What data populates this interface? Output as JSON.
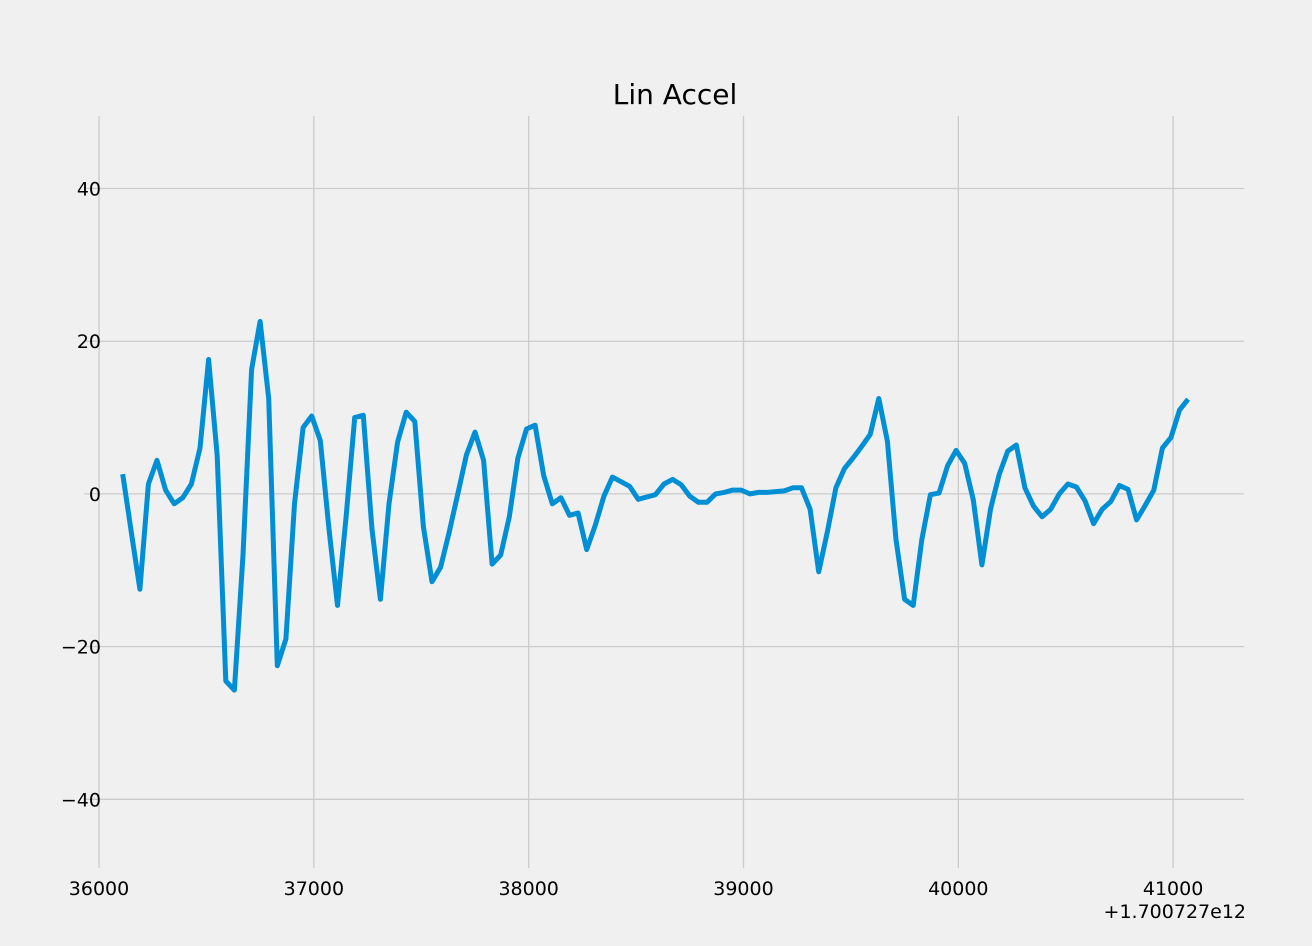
{
  "chart_data": {
    "type": "line",
    "title": "Lin Accel",
    "xlabel": "",
    "ylabel": "",
    "x_offset_label": "+1.700727e12",
    "xlim": [
      35930,
      41330
    ],
    "ylim": [
      -49,
      49.5
    ],
    "x_ticks": [
      36000,
      37000,
      38000,
      39000,
      40000,
      41000
    ],
    "x_tick_labels": [
      "36000",
      "37000",
      "38000",
      "39000",
      "40000",
      "41000"
    ],
    "y_ticks": [
      40,
      20,
      0,
      -20,
      -40
    ],
    "y_tick_labels": [
      "40",
      "20",
      "0",
      "−20",
      "−40"
    ],
    "grid": true,
    "legend": "none",
    "line_color": "#008fd5",
    "series": [
      {
        "x": [
          36110,
          36150,
          36190,
          36230,
          36270,
          36310,
          36350,
          36390,
          36430,
          36470,
          36510,
          36550,
          36590,
          36630,
          36670,
          36710,
          36750,
          36790,
          36830,
          36870,
          36910,
          36950,
          36990,
          37030,
          37070,
          37110,
          37150,
          37190,
          37230,
          37270,
          37310,
          37350,
          37390,
          37430,
          37470,
          37510,
          37550,
          37590,
          37630,
          37670,
          37710,
          37750,
          37790,
          37830,
          37870,
          37910,
          37950,
          37990,
          38030,
          38070,
          38110,
          38150,
          38190,
          38230,
          38270,
          38310,
          38350,
          38390,
          38430,
          38470,
          38510,
          38550,
          38590,
          38630,
          38670,
          38710,
          38750,
          38790,
          38830,
          38870,
          38910,
          38950,
          38990,
          39030,
          39070,
          39110,
          39150,
          39190,
          39230,
          39270,
          39310,
          39350,
          39390,
          39430,
          39470,
          39510,
          39550,
          39590,
          39630,
          39670,
          39710,
          39750,
          39790,
          39830,
          39870,
          39910,
          39950,
          39990,
          40030,
          40070,
          40110,
          40150,
          40190,
          40230,
          40270,
          40310,
          40350,
          40390,
          40430,
          40470,
          40510,
          40550,
          40590,
          40630,
          40670,
          40710,
          40750,
          40790,
          40830,
          40870,
          40910,
          40950,
          40990,
          41030,
          41070
        ],
        "y": [
          2.6,
          -5,
          -12.5,
          1.3,
          4.4,
          0.5,
          -1.3,
          -0.5,
          1.3,
          6,
          17.6,
          5,
          -24.5,
          -25.7,
          -8,
          16.3,
          22.6,
          12.5,
          -22.5,
          -19,
          -1.3,
          8.7,
          10.2,
          7,
          -4.5,
          -14.6,
          -3,
          10,
          10.3,
          -4.5,
          -13.8,
          -1.3,
          6.8,
          10.7,
          9.5,
          -4.3,
          -11.5,
          -9.6,
          -5,
          0,
          5.1,
          8.1,
          4.4,
          -9.2,
          -8,
          -3,
          4.7,
          8.5,
          9,
          2.4,
          -1.3,
          -0.5,
          -2.8,
          -2.5,
          -7.3,
          -4.1,
          -0.3,
          2.2,
          1.6,
          1,
          -0.7,
          -0.4,
          -0.1,
          1.3,
          1.9,
          1.2,
          -0.3,
          -1.1,
          -1.1,
          0,
          0.2,
          0.5,
          0.5,
          0,
          0.2,
          0.2,
          0.3,
          0.4,
          0.8,
          0.8,
          -2,
          -10.2,
          -5,
          0.8,
          3.3,
          4.7,
          6.2,
          7.8,
          12.5,
          6.9,
          -6,
          -13.8,
          -14.6,
          -6,
          -0.1,
          0.1,
          3.7,
          5.7,
          4,
          -0.8,
          -9.3,
          -2,
          2.5,
          5.6,
          6.4,
          0.8,
          -1.6,
          -3,
          -2,
          0,
          1.3,
          0.9,
          -0.9,
          -3.9,
          -2,
          -1,
          1.1,
          0.6,
          -3.4,
          -1.5,
          0.5,
          6,
          7.4,
          11,
          12.4
        ]
      }
    ]
  }
}
